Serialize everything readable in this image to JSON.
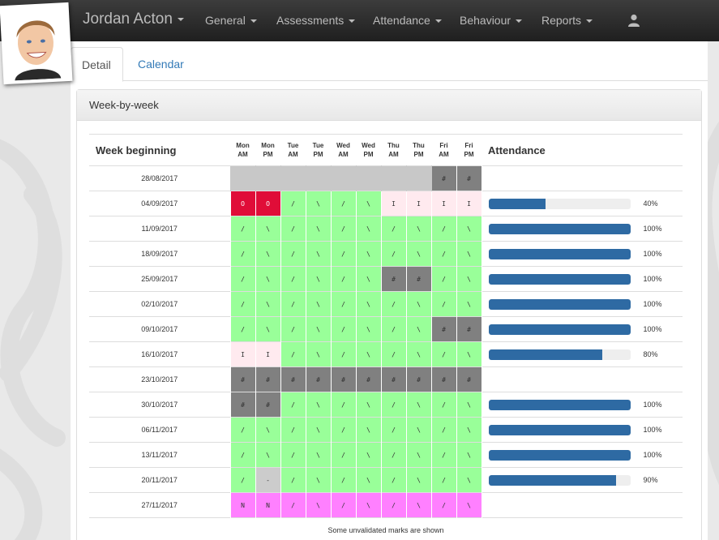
{
  "student": {
    "name": "Jordan Acton"
  },
  "nav": {
    "items": [
      "General",
      "Assessments",
      "Attendance",
      "Behaviour",
      "Reports"
    ]
  },
  "tabs": {
    "detail": "Detail",
    "calendar": "Calendar"
  },
  "panel": {
    "title": "Week-by-week"
  },
  "table": {
    "header_week": "Week beginning",
    "header_attendance": "Attendance",
    "sessions": [
      "Mon AM",
      "Mon PM",
      "Tue AM",
      "Tue PM",
      "Wed AM",
      "Wed PM",
      "Thu AM",
      "Thu PM",
      "Fri AM",
      "Fri PM"
    ],
    "footer": "Some unvalidated marks are shown",
    "rows": [
      {
        "week": "28/08/2017",
        "marks": [
          "",
          "",
          "",
          "",
          "",
          "",
          "",
          "",
          "#",
          "#"
        ],
        "pct": null
      },
      {
        "week": "04/09/2017",
        "marks": [
          "O",
          "O",
          "/",
          "\\",
          "/",
          "\\",
          "I",
          "I",
          "I",
          "I"
        ],
        "pct": 40,
        "pct_label": "40%"
      },
      {
        "week": "11/09/2017",
        "marks": [
          "/",
          "\\",
          "/",
          "\\",
          "/",
          "\\",
          "/",
          "\\",
          "/",
          "\\"
        ],
        "pct": 100,
        "pct_label": "100%"
      },
      {
        "week": "18/09/2017",
        "marks": [
          "/",
          "\\",
          "/",
          "\\",
          "/",
          "\\",
          "/",
          "\\",
          "/",
          "\\"
        ],
        "pct": 100,
        "pct_label": "100%"
      },
      {
        "week": "25/09/2017",
        "marks": [
          "/",
          "\\",
          "/",
          "\\",
          "/",
          "\\",
          "#",
          "#",
          "/",
          "\\"
        ],
        "pct": 100,
        "pct_label": "100%"
      },
      {
        "week": "02/10/2017",
        "marks": [
          "/",
          "\\",
          "/",
          "\\",
          "/",
          "\\",
          "/",
          "\\",
          "/",
          "\\"
        ],
        "pct": 100,
        "pct_label": "100%"
      },
      {
        "week": "09/10/2017",
        "marks": [
          "/",
          "\\",
          "/",
          "\\",
          "/",
          "\\",
          "/",
          "\\",
          "#",
          "#"
        ],
        "pct": 100,
        "pct_label": "100%"
      },
      {
        "week": "16/10/2017",
        "marks": [
          "I",
          "I",
          "/",
          "\\",
          "/",
          "\\",
          "/",
          "\\",
          "/",
          "\\"
        ],
        "pct": 80,
        "pct_label": "80%"
      },
      {
        "week": "23/10/2017",
        "marks": [
          "#",
          "#",
          "#",
          "#",
          "#",
          "#",
          "#",
          "#",
          "#",
          "#"
        ],
        "pct": null
      },
      {
        "week": "30/10/2017",
        "marks": [
          "#",
          "#",
          "/",
          "\\",
          "/",
          "\\",
          "/",
          "\\",
          "/",
          "\\"
        ],
        "pct": 100,
        "pct_label": "100%"
      },
      {
        "week": "06/11/2017",
        "marks": [
          "/",
          "\\",
          "/",
          "\\",
          "/",
          "\\",
          "/",
          "\\",
          "/",
          "\\"
        ],
        "pct": 100,
        "pct_label": "100%"
      },
      {
        "week": "13/11/2017",
        "marks": [
          "/",
          "\\",
          "/",
          "\\",
          "/",
          "\\",
          "/",
          "\\",
          "/",
          "\\"
        ],
        "pct": 100,
        "pct_label": "100%"
      },
      {
        "week": "20/11/2017",
        "marks": [
          "/",
          "-",
          "/",
          "\\",
          "/",
          "\\",
          "/",
          "\\",
          "/",
          "\\"
        ],
        "pct": 90,
        "pct_label": "90%"
      },
      {
        "week": "27/11/2017",
        "marks": [
          "N",
          "N",
          "/",
          "\\",
          "/",
          "\\",
          "/",
          "\\",
          "/",
          "\\"
        ],
        "pct": null,
        "unvalidated": [
          2,
          3,
          4,
          5,
          6,
          7,
          8,
          9
        ]
      }
    ]
  },
  "colors": {
    "present": "#99ff99",
    "unauthorised": "#e00d38",
    "authorised": "#ffeaef",
    "closed": "#808080",
    "blank": "#c8c8c8",
    "missing": "#cccccc",
    "unvalidated": "#ff80ff",
    "bar": "#2e6aa3"
  }
}
